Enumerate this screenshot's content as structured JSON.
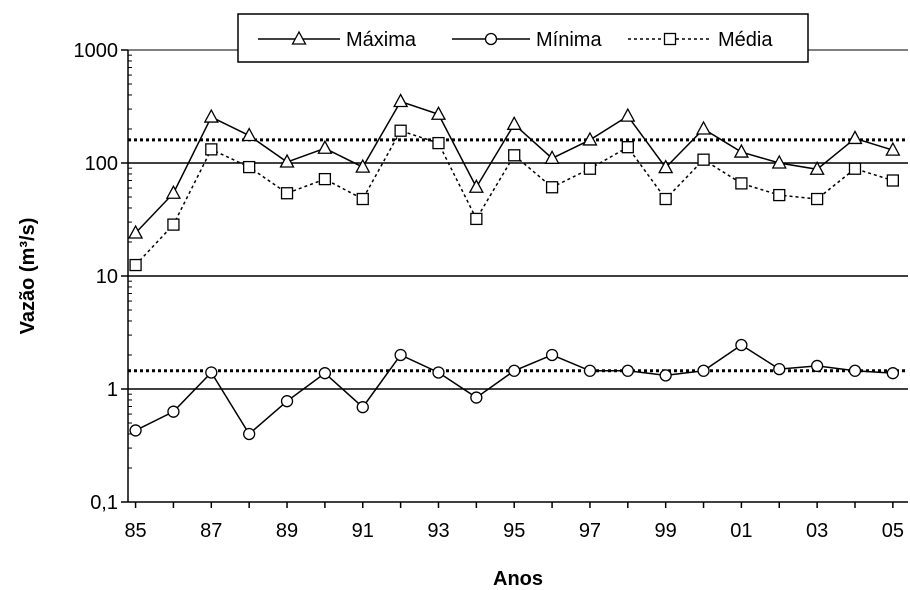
{
  "chart_data": {
    "type": "line",
    "xlabel": "Anos",
    "ylabel": "Vazão (m³/s)",
    "yscale": "log",
    "ylim": [
      0.1,
      1000
    ],
    "y_ticks": [
      0.1,
      1,
      10,
      100,
      1000
    ],
    "y_tick_labels": [
      "0,1",
      "1",
      "10",
      "100",
      "1000"
    ],
    "x_ticks": [
      1985,
      1987,
      1989,
      1991,
      1993,
      1995,
      1997,
      1999,
      2001,
      2003,
      2005
    ],
    "x_tick_labels": [
      "85",
      "87",
      "89",
      "91",
      "93",
      "95",
      "97",
      "99",
      "01",
      "03",
      "05"
    ],
    "horizontal_gridlines": [
      1,
      10,
      100
    ],
    "legend_position": "top",
    "x": [
      1985,
      1986,
      1987,
      1988,
      1989,
      1990,
      1991,
      1992,
      1993,
      1994,
      1995,
      1996,
      1997,
      1998,
      1999,
      2000,
      2001,
      2002,
      2003,
      2004,
      2005
    ],
    "series": [
      {
        "name": "Máxima",
        "marker": "triangle",
        "line": "solid",
        "values": [
          24,
          54,
          255,
          175,
          102,
          135,
          92,
          350,
          270,
          61,
          220,
          110,
          160,
          260,
          91,
          200,
          125,
          100,
          88,
          165,
          130
        ]
      },
      {
        "name": "Mínima",
        "marker": "circle",
        "line": "solid",
        "values": [
          0.43,
          0.63,
          1.4,
          0.4,
          0.78,
          1.38,
          0.69,
          2.0,
          1.4,
          0.84,
          1.45,
          2.0,
          1.45,
          1.45,
          1.32,
          1.45,
          2.45,
          1.5,
          1.6,
          1.45,
          1.38
        ]
      },
      {
        "name": "Média",
        "marker": "square",
        "line": "dotted",
        "values": [
          12.5,
          28.5,
          132,
          92,
          54,
          72,
          48,
          193,
          150,
          32,
          117,
          61,
          89,
          138,
          48,
          107,
          66,
          52,
          48,
          89,
          70
        ]
      }
    ],
    "reference_lines": [
      {
        "value": 160,
        "style": "dotted"
      },
      {
        "value": 1.45,
        "style": "dotted"
      }
    ]
  }
}
